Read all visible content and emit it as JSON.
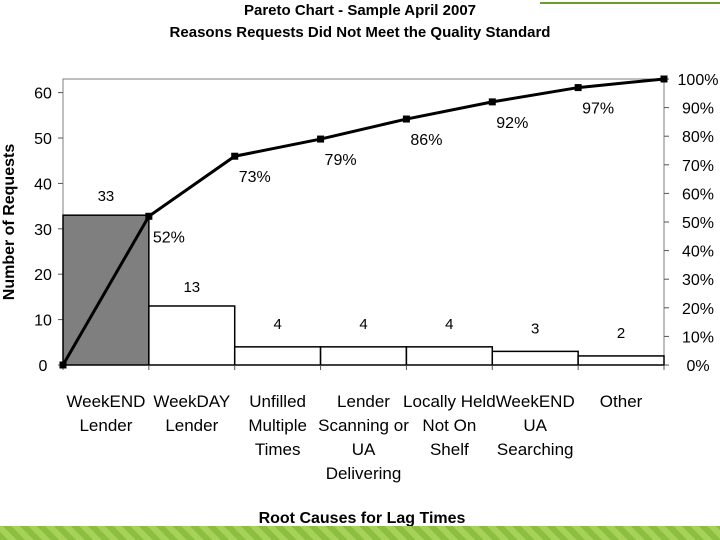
{
  "chart_data": {
    "type": "pareto",
    "title": "Pareto Chart - Sample April 2007",
    "subtitle": "Reasons Requests Did Not Meet the Quality Standard",
    "xlabel": "Root Causes for Lag Times",
    "ylabel": "Number of Requests",
    "ylim": [
      0,
      63
    ],
    "yticks": [
      "0",
      "10",
      "20",
      "30",
      "40",
      "50",
      "60"
    ],
    "y2ticks": [
      "0%",
      "10%",
      "20%",
      "30%",
      "40%",
      "50%",
      "60%",
      "70%",
      "80%",
      "90%",
      "100%"
    ],
    "categories": [
      [
        "WeekEND",
        "Lender"
      ],
      [
        "WeekDAY",
        "Lender"
      ],
      [
        "Unfilled",
        "Multiple",
        "Times"
      ],
      [
        "Lender",
        "Scanning or",
        "UA",
        "Delivering"
      ],
      [
        "Locally Held",
        "Not On",
        "Shelf"
      ],
      [
        "WeekEND",
        "UA",
        "Searching"
      ],
      [
        "Other"
      ]
    ],
    "values": [
      33,
      13,
      4,
      4,
      4,
      3,
      2
    ],
    "value_labels": [
      "33",
      "13",
      "4",
      "4",
      "4",
      "3",
      "2"
    ],
    "cumulative_pct": [
      0,
      52,
      73,
      79,
      86,
      92,
      97,
      100
    ],
    "cumulative_labels": [
      "52%",
      "73%",
      "79%",
      "86%",
      "92%",
      "97%"
    ],
    "colors": {
      "highlight": "#7f7f7f",
      "bar": "#ffffff",
      "line": "#000000"
    }
  }
}
